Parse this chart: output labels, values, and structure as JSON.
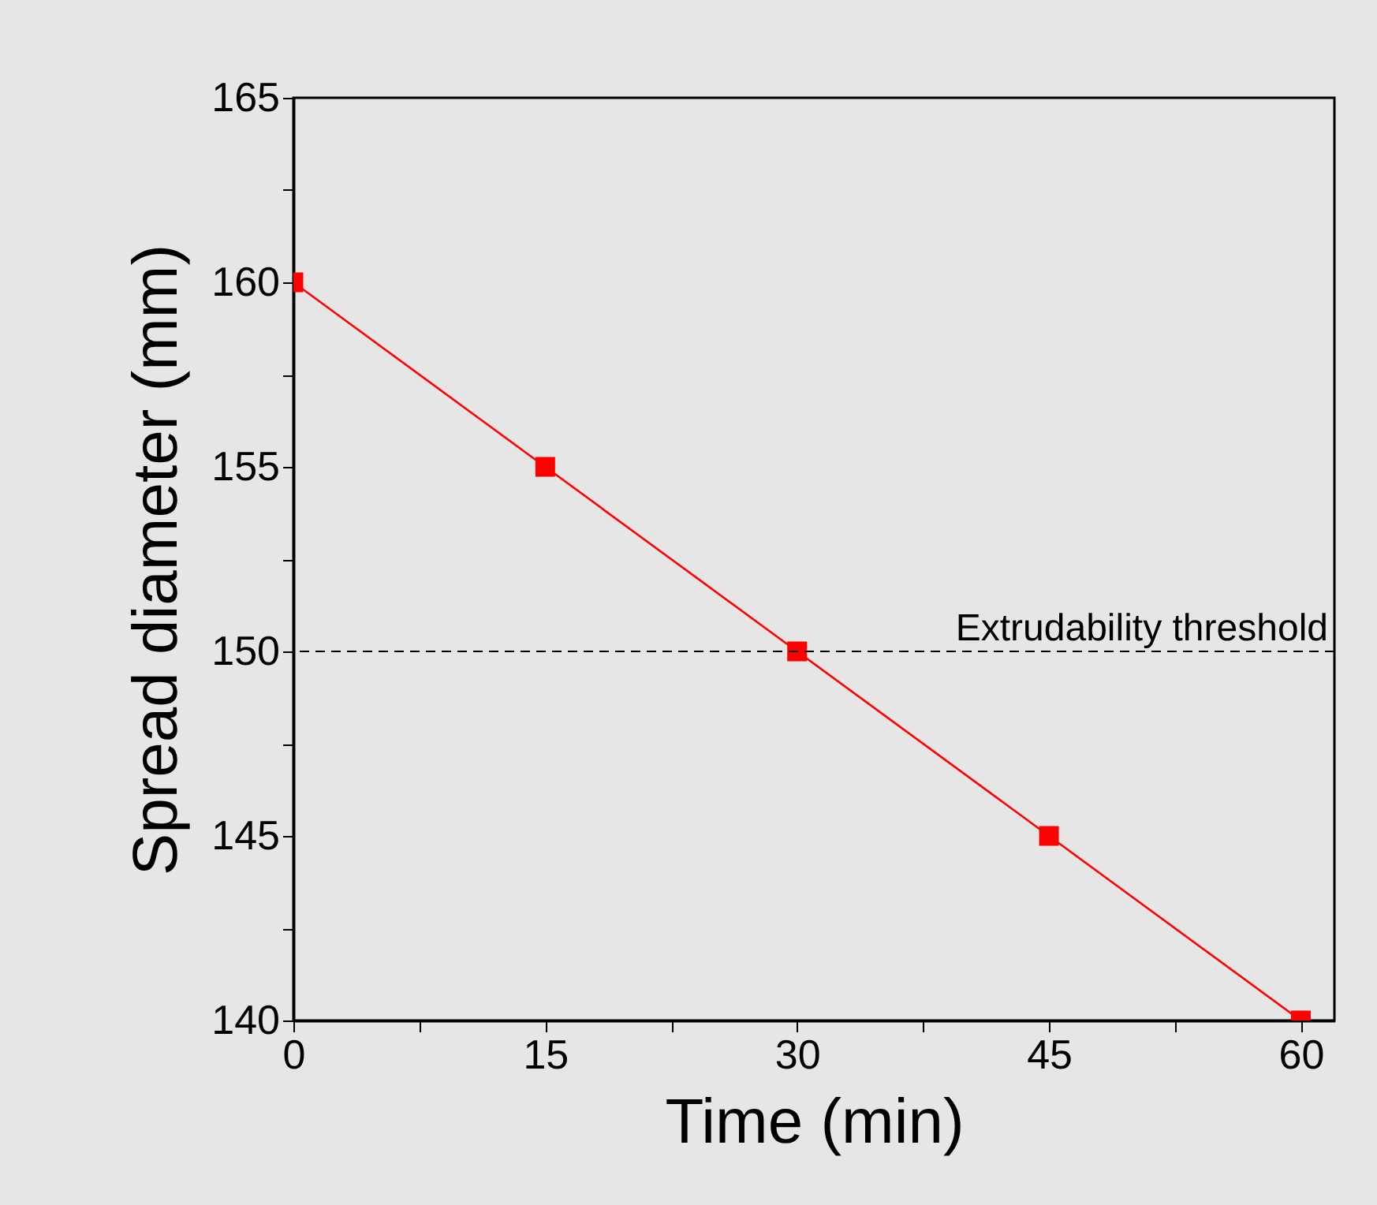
{
  "chart_data": {
    "type": "line",
    "xlabel": "Time (min)",
    "ylabel": "Spread diameter (mm)",
    "x": [
      0,
      15,
      30,
      45,
      60
    ],
    "series": [
      {
        "color": "#ff0000",
        "values": [
          160,
          155,
          150,
          145,
          140
        ]
      }
    ],
    "xlim": [
      0,
      62
    ],
    "xticks": [
      0,
      {
        "value": 7.5,
        "label": null
      },
      15,
      {
        "value": 22.5,
        "label": null
      },
      30,
      {
        "value": 37.5,
        "label": null
      },
      45,
      {
        "value": 52.5,
        "label": null
      },
      60
    ],
    "ylim": [
      140,
      165
    ],
    "yticks": [
      140,
      {
        "value": 142.5,
        "label": null
      },
      145,
      {
        "value": 147.5,
        "label": null
      },
      150,
      {
        "value": 152.5,
        "label": null
      },
      155,
      {
        "value": 157.5,
        "label": null
      },
      160,
      {
        "value": 162.5,
        "label": null
      },
      165
    ],
    "ref_lines": [
      {
        "axis": "y",
        "value": 150,
        "label": "Extrudability threshold",
        "color": "#000000",
        "line_style": "dashed"
      }
    ],
    "marker": "square",
    "line_style": "solid",
    "grid": false
  }
}
